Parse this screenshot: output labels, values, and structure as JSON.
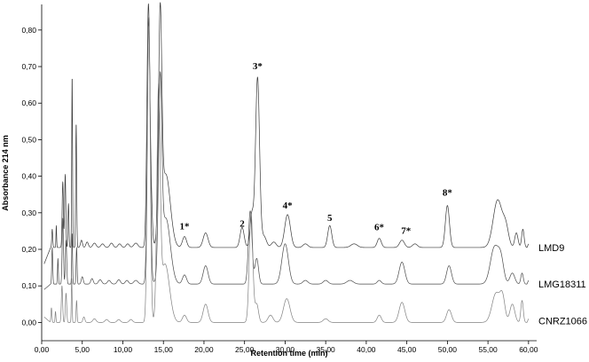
{
  "chart_data": {
    "type": "line",
    "xlabel": "Retention time (min)",
    "ylabel": "Absorbance 214 nm",
    "xlim": [
      0,
      61
    ],
    "ylim": [
      -0.05,
      0.87
    ],
    "x_ticks": [
      0,
      5,
      10,
      15,
      20,
      25,
      30,
      35,
      40,
      45,
      50,
      55,
      60
    ],
    "x_tick_labels": [
      "0,00",
      "5,00",
      "10,00",
      "15,00",
      "20,00",
      "25,00",
      "30,00",
      "35,00",
      "40,00",
      "45,00",
      "50,00",
      "55,00",
      "60,00"
    ],
    "y_ticks": [
      0,
      0.1,
      0.2,
      0.3,
      0.4,
      0.5,
      0.6,
      0.7,
      0.8
    ],
    "y_tick_labels": [
      "0,00",
      "0,10",
      "0,20",
      "0,30",
      "0,40",
      "0,50",
      "0,60",
      "0,70",
      "0,80"
    ],
    "grid": false,
    "legend": "inline-right",
    "peak_annotations": [
      {
        "label": "1*",
        "x": 17.6,
        "y": 0.247
      },
      {
        "label": "2",
        "x": 24.7,
        "y": 0.255
      },
      {
        "label": "3*",
        "x": 26.6,
        "y": 0.685
      },
      {
        "label": "4*",
        "x": 30.3,
        "y": 0.305
      },
      {
        "label": "5",
        "x": 35.5,
        "y": 0.27
      },
      {
        "label": "6*",
        "x": 41.6,
        "y": 0.245
      },
      {
        "label": "7*",
        "x": 44.9,
        "y": 0.235
      },
      {
        "label": "8*",
        "x": 50.0,
        "y": 0.34
      }
    ],
    "series": [
      {
        "name": "LMD9",
        "color": "#3a3a3a",
        "baseline": 0.205,
        "label_y": 0.205,
        "start": [
          0.3,
          0.16
        ],
        "peaks": [
          [
            1.3,
            0.06,
            0.05
          ],
          [
            1.8,
            0.04,
            0.06
          ],
          [
            2.6,
            0.08,
            0.18
          ],
          [
            2.9,
            0.07,
            0.2
          ],
          [
            3.3,
            0.06,
            0.12
          ],
          [
            3.75,
            0.05,
            0.47
          ],
          [
            4.25,
            0.06,
            0.34
          ],
          [
            4.9,
            0.12,
            0.02
          ],
          [
            5.6,
            0.15,
            0.015
          ],
          [
            6.5,
            0.2,
            0.012
          ],
          [
            7.5,
            0.2,
            0.01
          ],
          [
            8.6,
            0.2,
            0.012
          ],
          [
            9.6,
            0.2,
            0.01
          ],
          [
            10.6,
            0.2,
            0.01
          ],
          [
            11.6,
            0.25,
            0.012
          ],
          [
            13.15,
            0.18,
            0.66
          ],
          [
            13.5,
            0.15,
            0.1
          ],
          [
            14.6,
            0.2,
            0.58
          ],
          [
            15.3,
            0.55,
            0.2
          ],
          [
            17.6,
            0.25,
            0.03
          ],
          [
            20.2,
            0.3,
            0.04
          ],
          [
            24.7,
            0.25,
            0.055
          ],
          [
            25.9,
            0.22,
            0.09
          ],
          [
            26.6,
            0.25,
            0.465
          ],
          [
            27.4,
            0.3,
            0.03
          ],
          [
            28.6,
            0.3,
            0.015
          ],
          [
            30.3,
            0.35,
            0.09
          ],
          [
            32.5,
            0.3,
            0.01
          ],
          [
            35.5,
            0.25,
            0.06
          ],
          [
            38.5,
            0.4,
            0.01
          ],
          [
            41.6,
            0.25,
            0.025
          ],
          [
            44.4,
            0.3,
            0.02
          ],
          [
            46.0,
            0.3,
            0.01
          ],
          [
            50.0,
            0.25,
            0.115
          ],
          [
            56.2,
            0.55,
            0.13
          ],
          [
            57.2,
            0.35,
            0.05
          ],
          [
            58.5,
            0.2,
            0.04
          ],
          [
            59.3,
            0.15,
            0.05
          ]
        ],
        "end": [
          [
            59.8,
            0.205
          ],
          [
            60.0,
            0.215
          ]
        ]
      },
      {
        "name": "LMG18311",
        "color": "#4a4a4a",
        "baseline": 0.105,
        "label_y": 0.105,
        "start": [
          0.3,
          0.09
        ],
        "peaks": [
          [
            1.3,
            0.06,
            0.1
          ],
          [
            2.0,
            0.05,
            0.07
          ],
          [
            2.6,
            0.08,
            0.18
          ],
          [
            3.0,
            0.08,
            0.12
          ],
          [
            3.75,
            0.05,
            0.14
          ],
          [
            4.3,
            0.06,
            0.1
          ],
          [
            5.0,
            0.12,
            0.02
          ],
          [
            6.2,
            0.15,
            0.015
          ],
          [
            7.2,
            0.2,
            0.012
          ],
          [
            8.3,
            0.2,
            0.01
          ],
          [
            9.5,
            0.2,
            0.012
          ],
          [
            10.5,
            0.2,
            0.01
          ],
          [
            11.6,
            0.25,
            0.01
          ],
          [
            13.2,
            0.18,
            0.73
          ],
          [
            14.6,
            0.2,
            0.5
          ],
          [
            15.3,
            0.55,
            0.18
          ],
          [
            17.6,
            0.25,
            0.025
          ],
          [
            20.2,
            0.3,
            0.05
          ],
          [
            25.7,
            0.22,
            0.2
          ],
          [
            26.5,
            0.22,
            0.07
          ],
          [
            30.0,
            0.4,
            0.11
          ],
          [
            32.5,
            0.3,
            0.01
          ],
          [
            35.0,
            0.3,
            0.01
          ],
          [
            38.0,
            0.4,
            0.01
          ],
          [
            41.6,
            0.25,
            0.01
          ],
          [
            44.4,
            0.35,
            0.06
          ],
          [
            50.2,
            0.3,
            0.05
          ],
          [
            55.8,
            0.5,
            0.1
          ],
          [
            56.6,
            0.35,
            0.06
          ],
          [
            58.0,
            0.3,
            0.03
          ],
          [
            59.2,
            0.15,
            0.03
          ]
        ],
        "end": [
          [
            59.8,
            0.105
          ],
          [
            60.0,
            0.115
          ]
        ]
      },
      {
        "name": "CNRZ1066",
        "color": "#808080",
        "baseline": 0.0,
        "label_y": 0.005,
        "start": [
          0.3,
          0.015
        ],
        "peaks": [
          [
            1.2,
            0.06,
            0.04
          ],
          [
            1.7,
            0.05,
            0.03
          ],
          [
            2.5,
            0.08,
            0.1
          ],
          [
            3.0,
            0.08,
            0.08
          ],
          [
            3.7,
            0.05,
            0.12
          ],
          [
            4.3,
            0.06,
            0.06
          ],
          [
            5.2,
            0.12,
            0.015
          ],
          [
            6.5,
            0.2,
            0.01
          ],
          [
            8.0,
            0.2,
            0.008
          ],
          [
            9.5,
            0.2,
            0.008
          ],
          [
            11.0,
            0.2,
            0.008
          ],
          [
            13.2,
            0.18,
            0.81
          ],
          [
            14.4,
            0.2,
            0.6
          ],
          [
            15.2,
            0.55,
            0.16
          ],
          [
            17.6,
            0.25,
            0.02
          ],
          [
            20.2,
            0.3,
            0.05
          ],
          [
            25.8,
            0.22,
            0.3
          ],
          [
            26.5,
            0.22,
            0.05
          ],
          [
            28.2,
            0.3,
            0.02
          ],
          [
            30.2,
            0.4,
            0.065
          ],
          [
            35.0,
            0.3,
            0.01
          ],
          [
            41.6,
            0.25,
            0.02
          ],
          [
            44.4,
            0.35,
            0.055
          ],
          [
            50.2,
            0.3,
            0.035
          ],
          [
            56.0,
            0.5,
            0.08
          ],
          [
            56.8,
            0.3,
            0.06
          ],
          [
            58.0,
            0.3,
            0.05
          ],
          [
            59.2,
            0.15,
            0.06
          ]
        ],
        "end": [
          [
            59.8,
            0.0
          ],
          [
            60.0,
            0.01
          ]
        ]
      }
    ]
  }
}
